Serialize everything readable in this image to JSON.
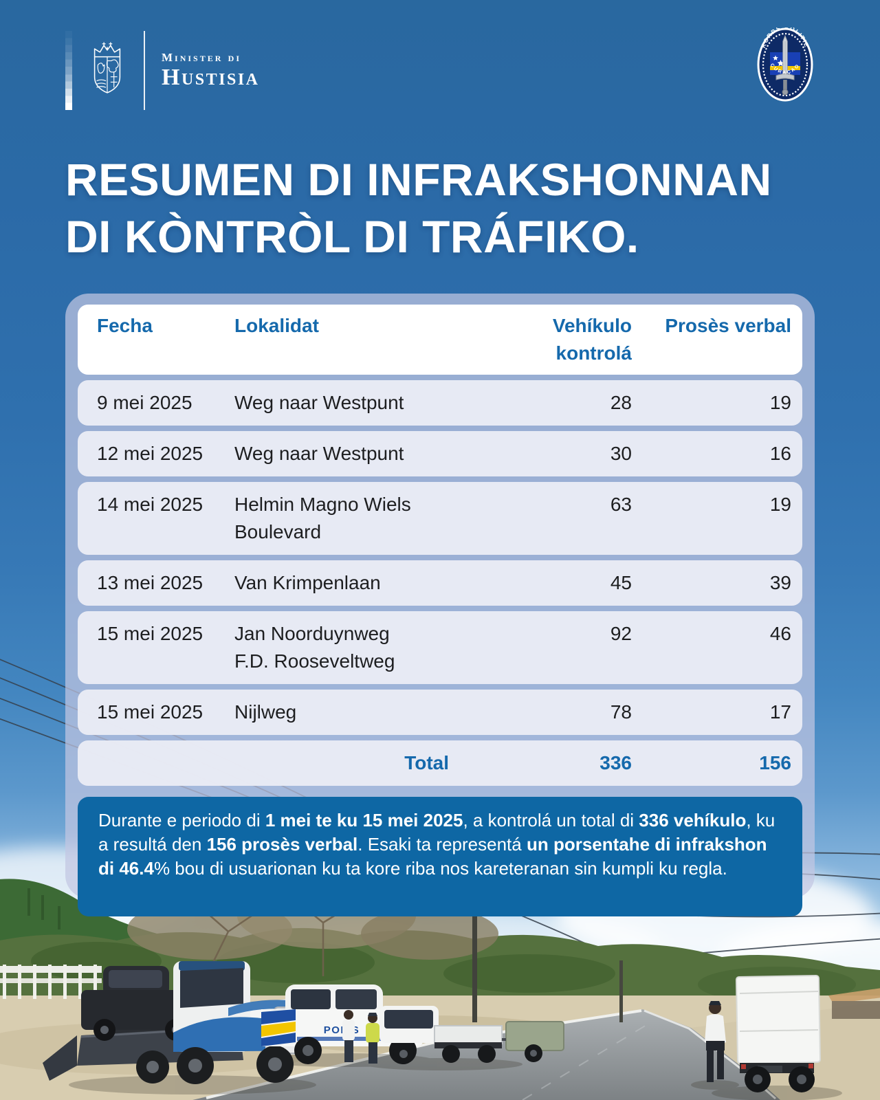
{
  "brand": {
    "ministry_small": "Minister di",
    "ministry_big": "Hustisia"
  },
  "badge": {
    "top_text": "KORPS POLITIE",
    "bottom_text": "CURAÇAO"
  },
  "title": {
    "line1": "RESUMEN DI INFRAKSHONNAN",
    "line2": "DI KÒNTRÒL DI TRÁFIKO."
  },
  "table": {
    "columns": [
      "Fecha",
      "Lokalidat",
      "Vehíkulo kontrolá",
      "Prosès verbal"
    ],
    "rows": [
      {
        "fecha": "9 mei 2025",
        "lokalidat": "Weg naar Westpunt",
        "vehikulo": "28",
        "proses": "19"
      },
      {
        "fecha": "12 mei 2025",
        "lokalidat": "Weg naar Westpunt",
        "vehikulo": "30",
        "proses": "16"
      },
      {
        "fecha": "14 mei 2025",
        "lokalidat": "Helmin Magno Wiels\nBoulevard",
        "vehikulo": "63",
        "proses": "19"
      },
      {
        "fecha": "13 mei 2025",
        "lokalidat": "Van Krimpenlaan",
        "vehikulo": "45",
        "proses": "39"
      },
      {
        "fecha": "15 mei 2025",
        "lokalidat": "Jan Noorduynweg\nF.D. Rooseveltweg",
        "vehikulo": "92",
        "proses": "46"
      },
      {
        "fecha": "15 mei 2025",
        "lokalidat": "Nijlweg",
        "vehikulo": "78",
        "proses": "17"
      }
    ],
    "total": {
      "label": "Total",
      "vehikulo": "336",
      "proses": "156"
    }
  },
  "summary": {
    "segments": [
      {
        "text": "Durante e periodo di ",
        "bold": false
      },
      {
        "text": "1 mei te ku 15 mei 2025",
        "bold": true
      },
      {
        "text": ", a kontrolá un total di ",
        "bold": false
      },
      {
        "text": "336 vehíkulo",
        "bold": true
      },
      {
        "text": ", ku a resultá den ",
        "bold": false
      },
      {
        "text": "156 prosès verbal",
        "bold": true
      },
      {
        "text": ". Esaki ta representá ",
        "bold": false
      },
      {
        "text": "un porsentahe di infrakshon di 46.4",
        "bold": true
      },
      {
        "text": "% bou di usuarionan ku ta kore riba nos kareteranan sin kumpli ku regla.",
        "bold": false
      }
    ]
  },
  "photo": {
    "police_car_label": "POLIS"
  },
  "colors": {
    "sky": "#2b6aa7",
    "accent_blue": "#1569ac",
    "summary_box": "#0e67a4",
    "panel": "rgba(194,198,226,0.72)",
    "row": "#e9ebf5",
    "flag_blue": "#1940b5",
    "flag_yellow": "#f2c500"
  }
}
